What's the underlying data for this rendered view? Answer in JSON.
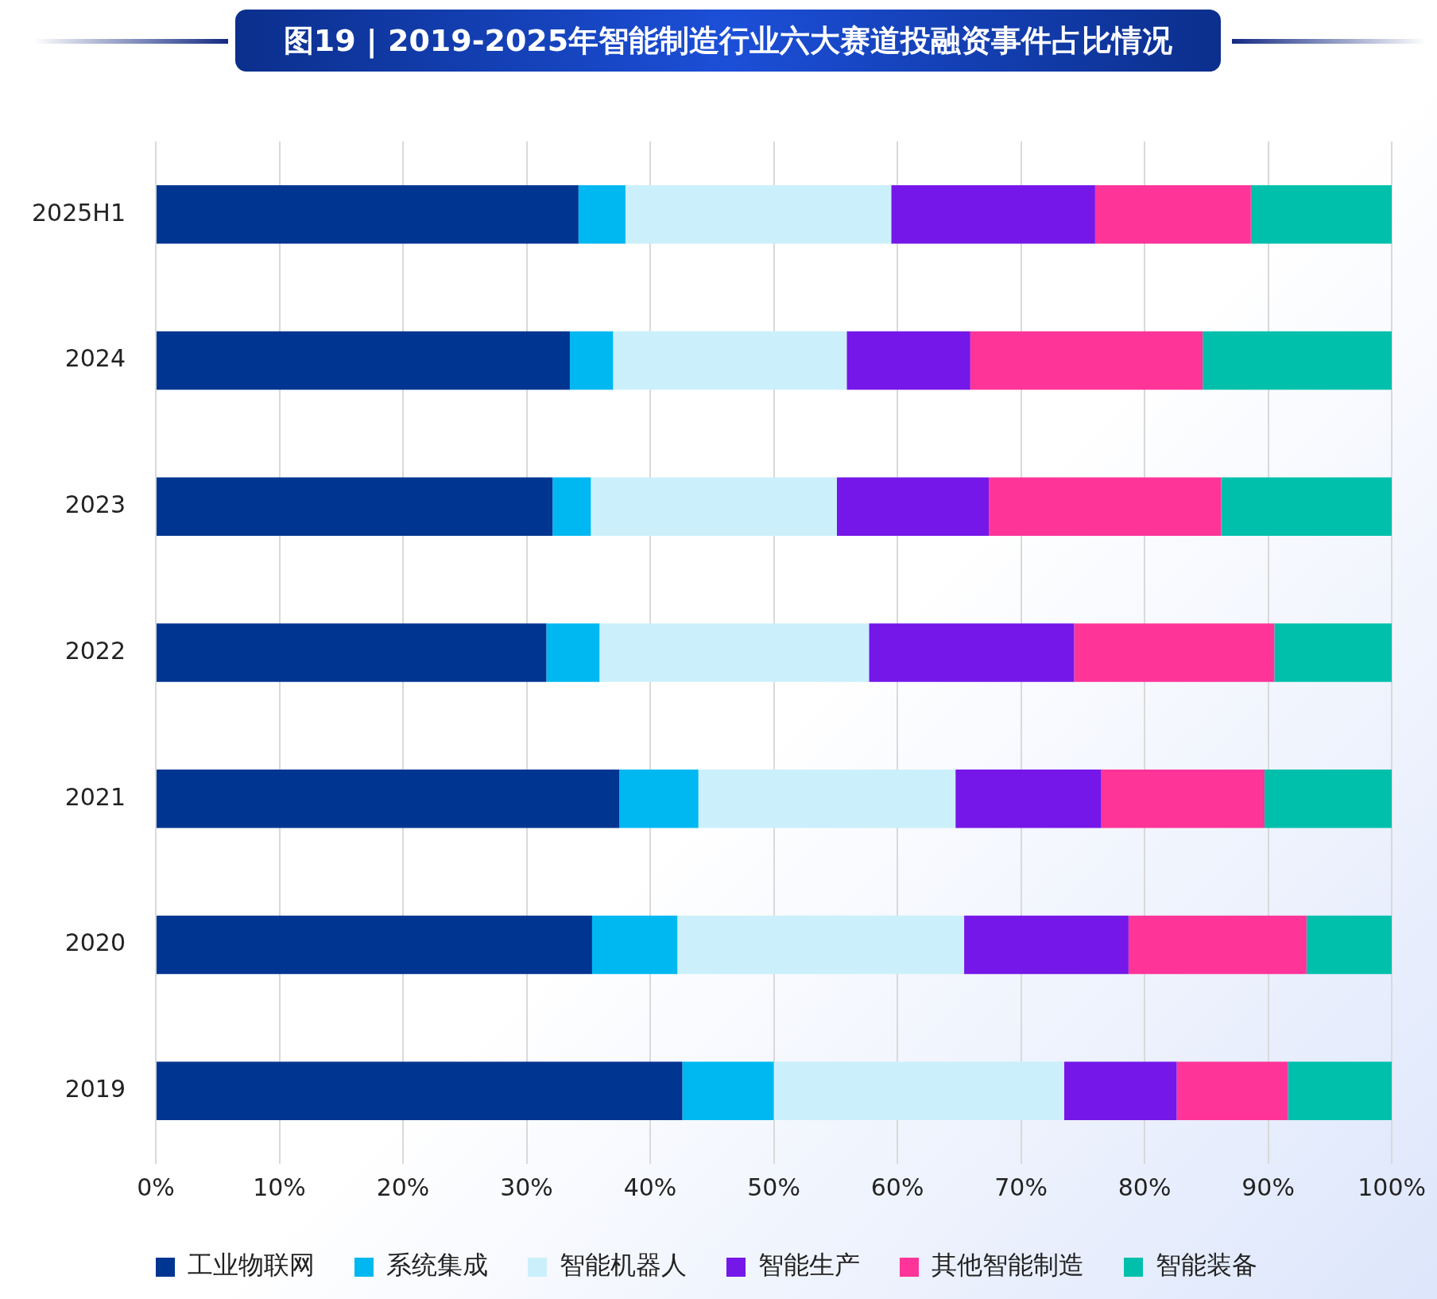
{
  "chart_data": {
    "type": "bar",
    "title": "图19 | 2019-2025年智能制造行业六大赛道投融资事件占比情况",
    "orientation": "horizontal",
    "stacked": true,
    "categories": [
      "2025H1",
      "2024",
      "2023",
      "2022",
      "2021",
      "2020",
      "2019"
    ],
    "series": [
      {
        "name": "工业物联网",
        "color": "#003591",
        "values": [
          34.2,
          33.5,
          32.1,
          31.6,
          37.5,
          35.3,
          42.6
        ]
      },
      {
        "name": "系统集成",
        "color": "#00b8f1",
        "values": [
          3.8,
          3.5,
          3.1,
          4.3,
          6.4,
          6.9,
          7.4
        ]
      },
      {
        "name": "智能机器人",
        "color": "#cbf0fb",
        "values": [
          21.5,
          18.9,
          19.9,
          21.8,
          20.8,
          23.2,
          23.5
        ]
      },
      {
        "name": "智能生产",
        "color": "#7517e8",
        "values": [
          16.5,
          10.0,
          12.3,
          16.6,
          11.8,
          13.3,
          9.1
        ]
      },
      {
        "name": "其他智能制造",
        "color": "#ff3499",
        "values": [
          12.6,
          18.8,
          18.8,
          16.2,
          13.2,
          14.4,
          9.0
        ]
      },
      {
        "name": "智能装备",
        "color": "#00c0ac",
        "values": [
          11.4,
          15.3,
          13.8,
          9.5,
          10.3,
          6.9,
          8.4
        ]
      }
    ],
    "xlim": [
      0,
      100
    ],
    "xticks": [
      {
        "value": 0,
        "label": "0%"
      },
      {
        "value": 10,
        "label": "10%"
      },
      {
        "value": 20,
        "label": "20%"
      },
      {
        "value": 30,
        "label": "30%"
      },
      {
        "value": 40,
        "label": "40%"
      },
      {
        "value": 50,
        "label": "50%"
      },
      {
        "value": 60,
        "label": "60%"
      },
      {
        "value": 70,
        "label": "70%"
      },
      {
        "value": 80,
        "label": "80%"
      },
      {
        "value": 90,
        "label": "90%"
      },
      {
        "value": 100,
        "label": "100%"
      }
    ],
    "grid": "x",
    "legend": "bottom"
  }
}
